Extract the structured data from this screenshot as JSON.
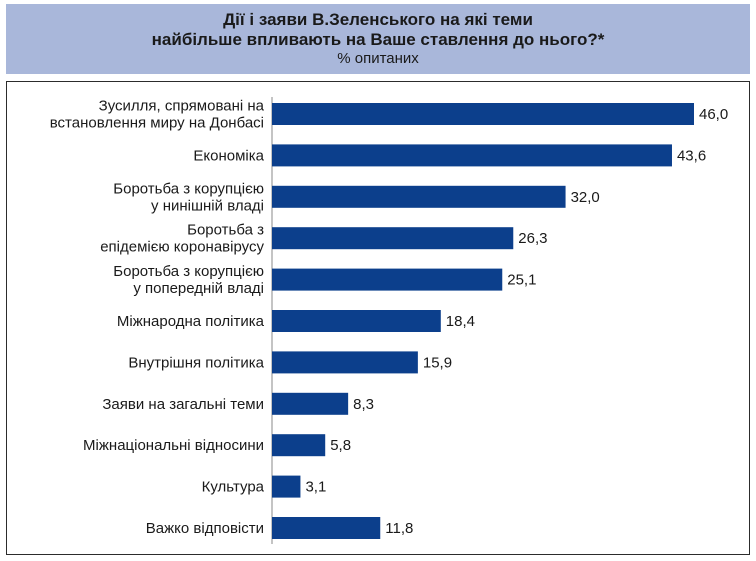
{
  "header": {
    "title_line1": "Дії і заяви В.Зеленського на які теми",
    "title_line2": "найбільше впливають на Ваше ставлення до нього?*",
    "subtitle": "% опитаних"
  },
  "colors": {
    "bar": "#0c3f8c",
    "header_bg": "#a9b7da"
  },
  "chart_data": {
    "type": "bar",
    "orientation": "horizontal",
    "title": "Дії і заяви В.Зеленського на які теми найбільше впливають на Ваше ставлення до нього?*",
    "subtitle": "% опитаних",
    "categories": [
      [
        "Зусилля, спрямовані на",
        "встановлення миру на Донбасі"
      ],
      [
        "Економіка"
      ],
      [
        "Боротьба з корупцією",
        "у нинішній владі"
      ],
      [
        "Боротьба з",
        "епідемією коронавірусу"
      ],
      [
        "Боротьба з корупцією",
        "у попередній владі"
      ],
      [
        "Міжнародна політика"
      ],
      [
        "Внутрішня політика"
      ],
      [
        "Заяви на загальні теми"
      ],
      [
        "Міжнаціональні відносини"
      ],
      [
        "Культура"
      ],
      [
        "Важко відповісти"
      ]
    ],
    "values": [
      46.0,
      43.6,
      32.0,
      26.3,
      25.1,
      18.4,
      15.9,
      8.3,
      5.8,
      3.1,
      11.8
    ],
    "value_labels": [
      "46,0",
      "43,6",
      "32,0",
      "26,3",
      "25,1",
      "18,4",
      "15,9",
      "8,3",
      "5,8",
      "3,1",
      "11,8"
    ],
    "xlim": [
      0,
      50
    ],
    "grid": false,
    "legend": "none"
  }
}
